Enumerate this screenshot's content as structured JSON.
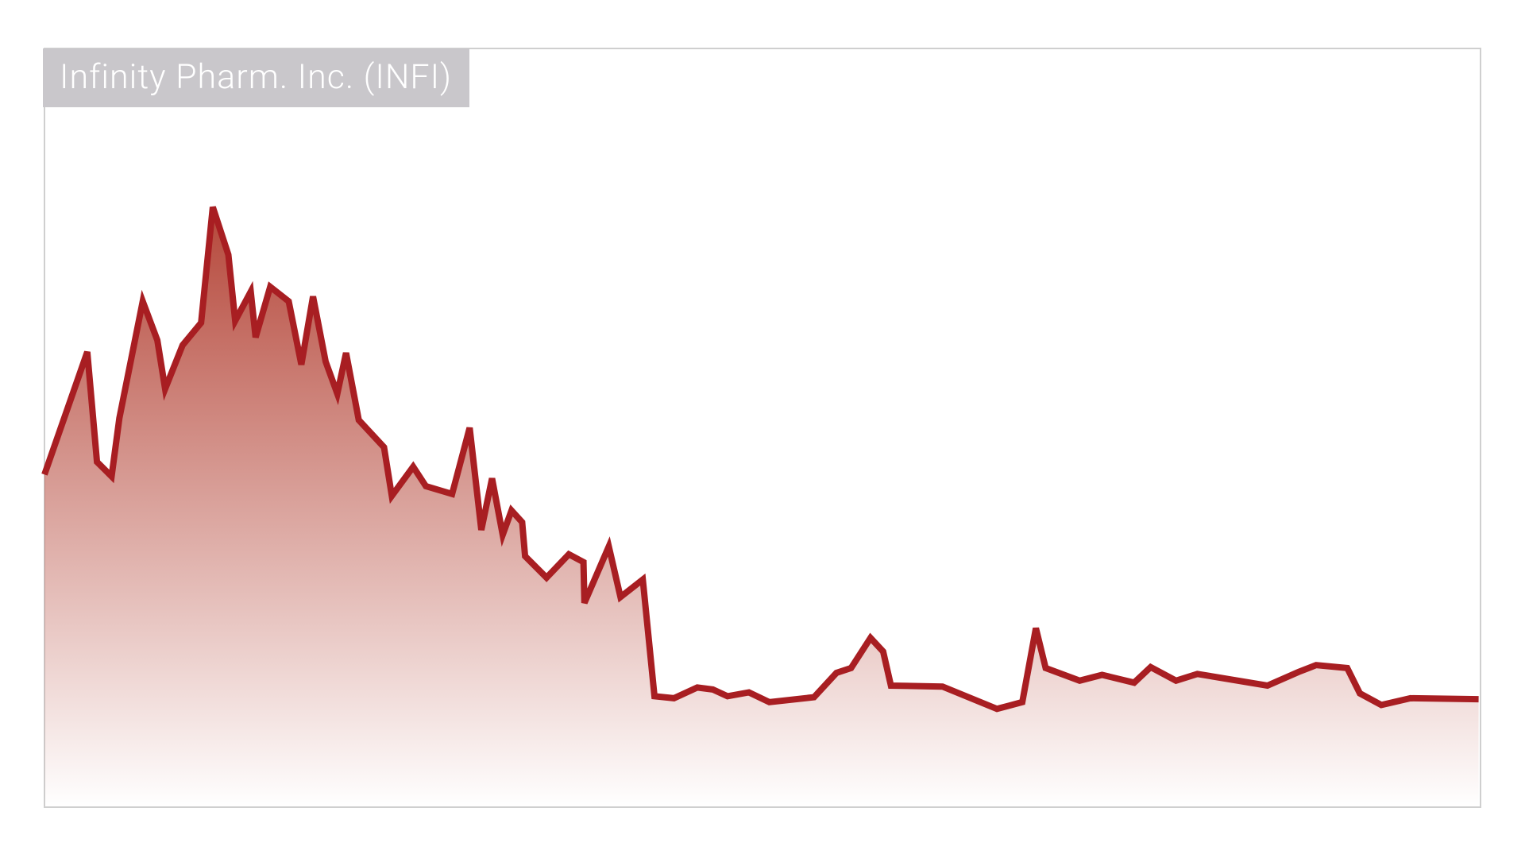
{
  "chart_data": {
    "type": "area",
    "title": "Infinity Pharm. Inc. (INFI)",
    "x": [
      0,
      44,
      54,
      69,
      77,
      101,
      116,
      124,
      142,
      161,
      173,
      189,
      196,
      212,
      217,
      232,
      251,
      264,
      276,
      289,
      301,
      310,
      323,
      349,
      357,
      379,
      392,
      419,
      437,
      449,
      460,
      471,
      480,
      491,
      494,
      516,
      539,
      554,
      555,
      580,
      592,
      615,
      627,
      647,
      671,
      687,
      702,
      724,
      745,
      791,
      814,
      829,
      849,
      862,
      870,
      923,
      979,
      1005,
      1019,
      1029,
      1064,
      1087,
      1120,
      1137,
      1163,
      1185,
      1257,
      1289,
      1307,
      1339,
      1352,
      1374,
      1404,
      1474
    ],
    "values": [
      342,
      468,
      355,
      340,
      400,
      520,
      480,
      430,
      475,
      498,
      617,
      568,
      500,
      530,
      483,
      535,
      520,
      455,
      525,
      458,
      425,
      467,
      398,
      370,
      320,
      350,
      330,
      322,
      390,
      285,
      338,
      280,
      305,
      293,
      258,
      236,
      260,
      252,
      210,
      268,
      216,
      234,
      114,
      112,
      123,
      121,
      114,
      118,
      108,
      113,
      138,
      143,
      174,
      160,
      125,
      124,
      101,
      108,
      184,
      143,
      130,
      136,
      128,
      144,
      130,
      137,
      125,
      139,
      146,
      143,
      117,
      105,
      112,
      111
    ],
    "xlim": [
      0,
      1476
    ],
    "ylim": [
      0,
      780
    ],
    "color": "#a81e22",
    "fill_color": "#b5473a"
  }
}
